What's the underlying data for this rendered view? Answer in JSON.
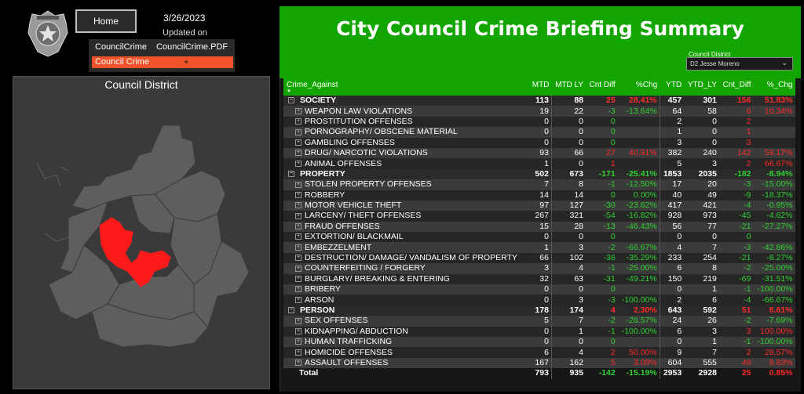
{
  "header": {
    "home_label": "Home",
    "date": "3/26/2023",
    "updated_label": "Updated on",
    "title": "City Council Crime Briefing Summary"
  },
  "nav": {
    "tab_1": "CouncilCrime",
    "tab_2": "CouncilCrime.PDF",
    "active_item": "Council Crime"
  },
  "map": {
    "title": "Council District",
    "highlight_color": "#ff1a1a",
    "base_color": "#5e5e5e"
  },
  "filter": {
    "label": "Council District",
    "selected": "D2 Jesse Moreno"
  },
  "colors": {
    "accent": "#13a600",
    "increase": "#ff2a2a",
    "decrease": "#2fd12f"
  },
  "table": {
    "columns": [
      "Crime_Against",
      "MTD",
      "MTD LY",
      "Cnt Diff",
      "%Chg",
      "YTD",
      "YTD_LY",
      "Cnt_Diff",
      "%_Chg"
    ],
    "rows": [
      {
        "type": "group",
        "name": "SOCIETY",
        "mtd": "113",
        "mtd_ly": "88",
        "cnt_diff": "25",
        "pct": "28.41%",
        "ytd": "457",
        "ytd_ly": "301",
        "cnt_diff2": "156",
        "pct2": "51.83%"
      },
      {
        "type": "item",
        "name": "WEAPON LAW VIOLATIONS",
        "mtd": "19",
        "mtd_ly": "22",
        "cnt_diff": "-3",
        "pct": "-13.64%",
        "ytd": "64",
        "ytd_ly": "58",
        "cnt_diff2": "6",
        "pct2": "10.34%"
      },
      {
        "type": "item",
        "name": "PROSTITUTION OFFENSES",
        "mtd": "0",
        "mtd_ly": "0",
        "cnt_diff": "0",
        "pct": "",
        "ytd": "2",
        "ytd_ly": "0",
        "cnt_diff2": "2",
        "pct2": ""
      },
      {
        "type": "item",
        "name": "PORNOGRAPHY/ OBSCENE MATERIAL",
        "mtd": "0",
        "mtd_ly": "0",
        "cnt_diff": "0",
        "pct": "",
        "ytd": "1",
        "ytd_ly": "0",
        "cnt_diff2": "1",
        "pct2": ""
      },
      {
        "type": "item",
        "name": "GAMBLING OFFENSES",
        "mtd": "0",
        "mtd_ly": "0",
        "cnt_diff": "0",
        "pct": "",
        "ytd": "3",
        "ytd_ly": "0",
        "cnt_diff2": "3",
        "pct2": ""
      },
      {
        "type": "item",
        "name": "DRUG/ NARCOTIC VIOLATIONS",
        "mtd": "93",
        "mtd_ly": "66",
        "cnt_diff": "27",
        "pct": "40.91%",
        "ytd": "382",
        "ytd_ly": "240",
        "cnt_diff2": "142",
        "pct2": "59.17%"
      },
      {
        "type": "item",
        "name": "ANIMAL OFFENSES",
        "mtd": "1",
        "mtd_ly": "0",
        "cnt_diff": "1",
        "pct": "",
        "ytd": "5",
        "ytd_ly": "3",
        "cnt_diff2": "2",
        "pct2": "66.67%"
      },
      {
        "type": "group",
        "name": "PROPERTY",
        "mtd": "502",
        "mtd_ly": "673",
        "cnt_diff": "-171",
        "pct": "-25.41%",
        "ytd": "1853",
        "ytd_ly": "2035",
        "cnt_diff2": "-182",
        "pct2": "-8.94%"
      },
      {
        "type": "item",
        "name": "STOLEN PROPERTY OFFENSES",
        "mtd": "7",
        "mtd_ly": "8",
        "cnt_diff": "-1",
        "pct": "-12.50%",
        "ytd": "17",
        "ytd_ly": "20",
        "cnt_diff2": "-3",
        "pct2": "-15.00%"
      },
      {
        "type": "item",
        "name": "ROBBERY",
        "mtd": "14",
        "mtd_ly": "14",
        "cnt_diff": "0",
        "pct": "0.00%",
        "ytd": "40",
        "ytd_ly": "49",
        "cnt_diff2": "-9",
        "pct2": "-18.37%"
      },
      {
        "type": "item",
        "name": "MOTOR VEHICLE THEFT",
        "mtd": "97",
        "mtd_ly": "127",
        "cnt_diff": "-30",
        "pct": "-23.62%",
        "ytd": "417",
        "ytd_ly": "421",
        "cnt_diff2": "-4",
        "pct2": "-0.95%"
      },
      {
        "type": "item",
        "name": "LARCENY/ THEFT OFFENSES",
        "mtd": "267",
        "mtd_ly": "321",
        "cnt_diff": "-54",
        "pct": "-16.82%",
        "ytd": "928",
        "ytd_ly": "973",
        "cnt_diff2": "-45",
        "pct2": "-4.62%"
      },
      {
        "type": "item",
        "name": "FRAUD OFFENSES",
        "mtd": "15",
        "mtd_ly": "28",
        "cnt_diff": "-13",
        "pct": "-46.43%",
        "ytd": "56",
        "ytd_ly": "77",
        "cnt_diff2": "-21",
        "pct2": "-27.27%"
      },
      {
        "type": "item",
        "name": "EXTORTION/ BLACKMAIL",
        "mtd": "0",
        "mtd_ly": "0",
        "cnt_diff": "0",
        "pct": "",
        "ytd": "0",
        "ytd_ly": "0",
        "cnt_diff2": "0",
        "pct2": ""
      },
      {
        "type": "item",
        "name": "EMBEZZELMENT",
        "mtd": "1",
        "mtd_ly": "3",
        "cnt_diff": "-2",
        "pct": "-66.67%",
        "ytd": "4",
        "ytd_ly": "7",
        "cnt_diff2": "-3",
        "pct2": "-42.86%"
      },
      {
        "type": "item",
        "name": "DESTRUCTION/ DAMAGE/ VANDALISM OF PROPERTY",
        "mtd": "66",
        "mtd_ly": "102",
        "cnt_diff": "-36",
        "pct": "-35.29%",
        "ytd": "233",
        "ytd_ly": "254",
        "cnt_diff2": "-21",
        "pct2": "-8.27%"
      },
      {
        "type": "item",
        "name": "COUNTERFEITING / FORGERY",
        "mtd": "3",
        "mtd_ly": "4",
        "cnt_diff": "-1",
        "pct": "-25.00%",
        "ytd": "6",
        "ytd_ly": "8",
        "cnt_diff2": "-2",
        "pct2": "-25.00%"
      },
      {
        "type": "item",
        "name": "BURGLARY/ BREAKING & ENTERING",
        "mtd": "32",
        "mtd_ly": "63",
        "cnt_diff": "-31",
        "pct": "-49.21%",
        "ytd": "150",
        "ytd_ly": "219",
        "cnt_diff2": "-69",
        "pct2": "-31.51%"
      },
      {
        "type": "item",
        "name": "BRIBERY",
        "mtd": "0",
        "mtd_ly": "0",
        "cnt_diff": "0",
        "pct": "",
        "ytd": "0",
        "ytd_ly": "1",
        "cnt_diff2": "-1",
        "pct2": "-100.00%"
      },
      {
        "type": "item",
        "name": "ARSON",
        "mtd": "0",
        "mtd_ly": "3",
        "cnt_diff": "-3",
        "pct": "-100.00%",
        "ytd": "2",
        "ytd_ly": "6",
        "cnt_diff2": "-4",
        "pct2": "-66.67%"
      },
      {
        "type": "group",
        "name": "PERSON",
        "mtd": "178",
        "mtd_ly": "174",
        "cnt_diff": "4",
        "pct": "2.30%",
        "ytd": "643",
        "ytd_ly": "592",
        "cnt_diff2": "51",
        "pct2": "8.61%"
      },
      {
        "type": "item",
        "name": "SEX OFFENSES",
        "mtd": "5",
        "mtd_ly": "7",
        "cnt_diff": "-2",
        "pct": "-28.57%",
        "ytd": "24",
        "ytd_ly": "26",
        "cnt_diff2": "-2",
        "pct2": "-7.69%"
      },
      {
        "type": "item",
        "name": "KIDNAPPING/ ABDUCTION",
        "mtd": "0",
        "mtd_ly": "1",
        "cnt_diff": "-1",
        "pct": "-100.00%",
        "ytd": "6",
        "ytd_ly": "3",
        "cnt_diff2": "3",
        "pct2": "100.00%"
      },
      {
        "type": "item",
        "name": "HUMAN TRAFFICKING",
        "mtd": "0",
        "mtd_ly": "0",
        "cnt_diff": "0",
        "pct": "",
        "ytd": "0",
        "ytd_ly": "1",
        "cnt_diff2": "-1",
        "pct2": "-100.00%"
      },
      {
        "type": "item",
        "name": "HOMICIDE OFFENSES",
        "mtd": "6",
        "mtd_ly": "4",
        "cnt_diff": "2",
        "pct": "50.00%",
        "ytd": "9",
        "ytd_ly": "7",
        "cnt_diff2": "2",
        "pct2": "28.57%"
      },
      {
        "type": "item",
        "name": "ASSAULT OFFENSES",
        "mtd": "167",
        "mtd_ly": "162",
        "cnt_diff": "5",
        "pct": "3.09%",
        "ytd": "604",
        "ytd_ly": "555",
        "cnt_diff2": "49",
        "pct2": "8.83%"
      },
      {
        "type": "total",
        "name": "Total",
        "mtd": "793",
        "mtd_ly": "935",
        "cnt_diff": "-142",
        "pct": "-15.19%",
        "ytd": "2953",
        "ytd_ly": "2928",
        "cnt_diff2": "25",
        "pct2": "0.85%"
      }
    ]
  }
}
